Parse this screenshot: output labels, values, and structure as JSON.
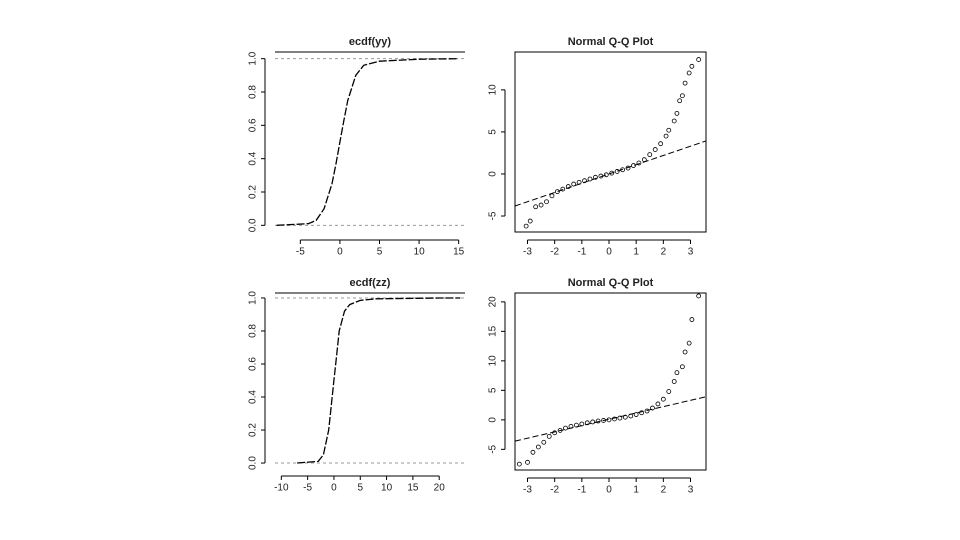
{
  "chart_data": [
    {
      "type": "line",
      "title": "ecdf(yy)",
      "x": [
        -8,
        -4,
        -3,
        -2,
        -1,
        -0.5,
        0,
        0.5,
        1,
        2,
        3,
        5,
        10,
        15
      ],
      "values": [
        0,
        0.01,
        0.03,
        0.1,
        0.25,
        0.37,
        0.5,
        0.63,
        0.75,
        0.9,
        0.96,
        0.985,
        0.997,
        1
      ],
      "xlim": [
        -8.2,
        15.8
      ],
      "ylim": [
        -0.04,
        1.04
      ],
      "xticks": [
        -5,
        0,
        5,
        10,
        15
      ],
      "yticks": [
        {
          "value": 0,
          "label": "0.0"
        },
        0.2,
        0.4,
        0.6,
        0.8,
        {
          "value": 1,
          "label": "1.0"
        }
      ],
      "hlines": [
        0,
        1
      ],
      "color": "#000000"
    },
    {
      "type": "scatter",
      "title": "Normal Q-Q Plot",
      "x": [
        -3.05,
        -2.9,
        -2.7,
        -2.5,
        -2.3,
        -2.1,
        -1.9,
        -1.7,
        -1.5,
        -1.3,
        -1.1,
        -0.9,
        -0.7,
        -0.5,
        -0.3,
        -0.1,
        0.1,
        0.3,
        0.5,
        0.7,
        0.9,
        1.1,
        1.3,
        1.5,
        1.7,
        1.9,
        2.1,
        2.2,
        2.4,
        2.5,
        2.6,
        2.7,
        2.8,
        2.95,
        3.05,
        3.3
      ],
      "values": [
        -6.2,
        -5.6,
        -3.9,
        -3.7,
        -3.3,
        -2.6,
        -2.1,
        -1.8,
        -1.5,
        -1.2,
        -1.0,
        -0.8,
        -0.6,
        -0.4,
        -0.25,
        -0.1,
        0.1,
        0.3,
        0.5,
        0.7,
        1.0,
        1.3,
        1.7,
        2.3,
        2.9,
        3.6,
        4.5,
        5.2,
        6.3,
        7.2,
        8.7,
        9.3,
        10.8,
        12.0,
        12.8,
        13.6
      ],
      "xlim": [
        -3.46,
        3.57
      ],
      "ylim": [
        -6.9,
        14.5
      ],
      "xticks": [
        -3,
        -2,
        -1,
        0,
        1,
        2,
        3
      ],
      "yticks": [
        -5,
        0,
        5,
        10
      ],
      "abline": {
        "intercept": 0,
        "slope": 1.1
      },
      "color": "#000000"
    },
    {
      "type": "line",
      "title": "ecdf(zz)",
      "x": [
        -7,
        -3,
        -2,
        -1,
        -0.5,
        0,
        0.5,
        1,
        2,
        3,
        5,
        8,
        20,
        24
      ],
      "values": [
        0,
        0.01,
        0.05,
        0.2,
        0.35,
        0.5,
        0.65,
        0.8,
        0.92,
        0.96,
        0.985,
        0.995,
        1,
        1
      ],
      "xlim": [
        -11.2,
        24.9
      ],
      "ylim": [
        -0.03,
        1.03
      ],
      "xticks": [
        -10,
        -5,
        0,
        5,
        10,
        15,
        20
      ],
      "yticks": [
        {
          "value": 0,
          "label": "0.0"
        },
        0.2,
        0.4,
        0.6,
        0.8,
        {
          "value": 1,
          "label": "1.0"
        }
      ],
      "hlines": [
        0,
        1
      ],
      "color": "#000000"
    },
    {
      "type": "scatter",
      "title": "Normal Q-Q Plot",
      "x": [
        -3.3,
        -3.0,
        -2.8,
        -2.6,
        -2.4,
        -2.2,
        -2.0,
        -1.8,
        -1.6,
        -1.4,
        -1.2,
        -1.0,
        -0.8,
        -0.6,
        -0.4,
        -0.2,
        0,
        0.2,
        0.4,
        0.6,
        0.8,
        1.0,
        1.2,
        1.4,
        1.6,
        1.8,
        2.0,
        2.2,
        2.4,
        2.5,
        2.7,
        2.8,
        2.95,
        3.05,
        3.3
      ],
      "values": [
        -7.5,
        -7.2,
        -5.5,
        -4.6,
        -3.8,
        -2.8,
        -2.2,
        -1.8,
        -1.4,
        -1.1,
        -0.9,
        -0.7,
        -0.5,
        -0.35,
        -0.2,
        -0.1,
        0,
        0.15,
        0.3,
        0.45,
        0.65,
        0.9,
        1.2,
        1.5,
        2.0,
        2.7,
        3.5,
        4.8,
        6.5,
        8.0,
        9.0,
        11.5,
        13.0,
        17.0,
        21.0
      ],
      "xlim": [
        -3.46,
        3.57
      ],
      "ylim": [
        -8.5,
        21.5
      ],
      "xticks": [
        -3,
        -2,
        -1,
        0,
        1,
        2,
        3
      ],
      "yticks": [
        -5,
        0,
        5,
        10,
        15,
        20
      ],
      "abline": {
        "intercept": 0.1,
        "slope": 1.07
      },
      "color": "#000000"
    }
  ]
}
